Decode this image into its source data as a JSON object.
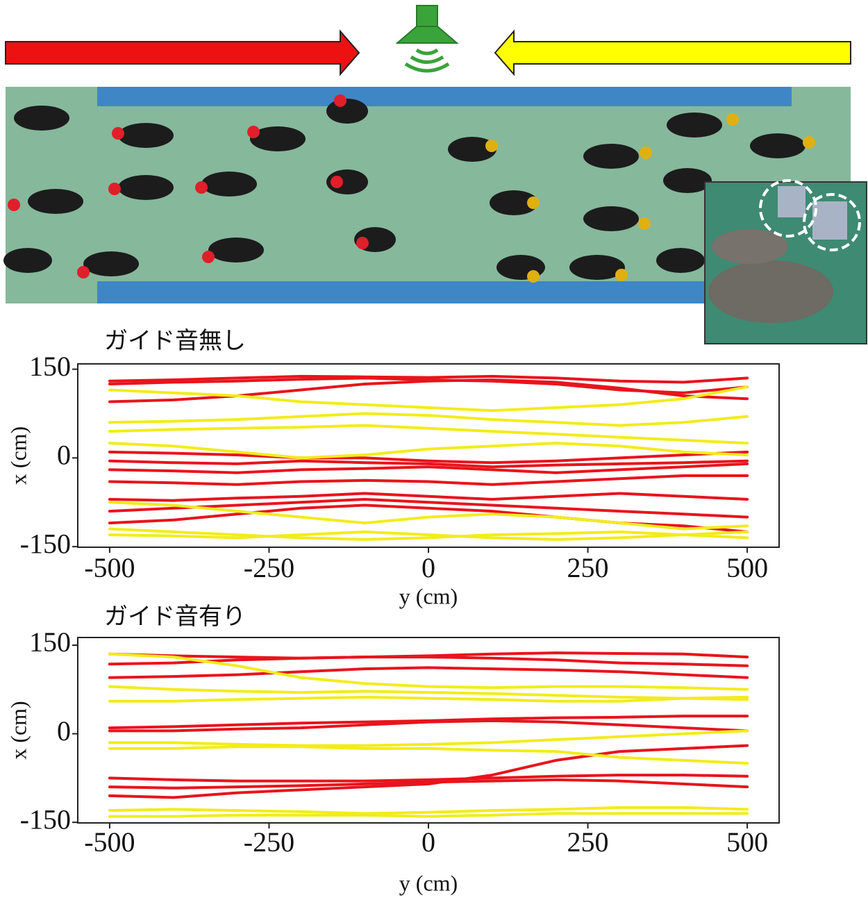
{
  "chart_data": [
    {
      "type": "line",
      "title": "ガイド音無し",
      "x_label": "y (cm)",
      "y_label": "x (cm)",
      "x": [
        -500,
        -400,
        -300,
        -200,
        -100,
        0,
        100,
        200,
        300,
        400,
        500
      ],
      "xlim": [
        -550,
        550
      ],
      "ylim": [
        -151,
        159
      ],
      "xticks": [
        -500,
        -250,
        0,
        250,
        500
      ],
      "yticks": [
        -150,
        0,
        150
      ],
      "series": [
        {
          "color": "#e8141c",
          "values": [
            130,
            132,
            135,
            138,
            137,
            136,
            138,
            135,
            130,
            128,
            135
          ]
        },
        {
          "color": "#e8141c",
          "values": [
            125,
            128,
            130,
            133,
            135,
            132,
            130,
            125,
            115,
            110,
            120
          ]
        },
        {
          "color": "#e8141c",
          "values": [
            95,
            98,
            105,
            115,
            125,
            130,
            132,
            128,
            118,
            105,
            100
          ]
        },
        {
          "color": "#e8141c",
          "values": [
            10,
            8,
            5,
            0,
            0,
            -5,
            -8,
            -5,
            0,
            5,
            10
          ]
        },
        {
          "color": "#e8141c",
          "values": [
            -5,
            -8,
            -10,
            -5,
            -8,
            -10,
            -15,
            -12,
            -10,
            -8,
            -5
          ]
        },
        {
          "color": "#e8141c",
          "values": [
            -20,
            -22,
            -25,
            -20,
            -18,
            -15,
            -20,
            -25,
            -20,
            -15,
            -10
          ]
        },
        {
          "color": "#e8141c",
          "values": [
            -40,
            -42,
            -45,
            -40,
            -38,
            -40,
            -45,
            -40,
            -35,
            -30,
            -30
          ]
        },
        {
          "color": "#e8141c",
          "values": [
            -70,
            -72,
            -68,
            -65,
            -60,
            -65,
            -70,
            -65,
            -60,
            -65,
            -70
          ]
        },
        {
          "color": "#e8141c",
          "values": [
            -90,
            -85,
            -80,
            -75,
            -70,
            -75,
            -80,
            -85,
            -90,
            -95,
            -100
          ]
        },
        {
          "color": "#e8141c",
          "values": [
            -110,
            -105,
            -95,
            -85,
            -80,
            -85,
            -90,
            -100,
            -110,
            -115,
            -125
          ]
        },
        {
          "color": "#f2ec1a",
          "values": [
            115,
            110,
            105,
            95,
            90,
            85,
            80,
            85,
            90,
            100,
            120
          ]
        },
        {
          "color": "#f2ec1a",
          "values": [
            60,
            62,
            65,
            70,
            75,
            72,
            65,
            60,
            55,
            60,
            70
          ]
        },
        {
          "color": "#f2ec1a",
          "values": [
            45,
            48,
            50,
            52,
            55,
            50,
            45,
            40,
            35,
            30,
            25
          ]
        },
        {
          "color": "#f2ec1a",
          "values": [
            25,
            20,
            10,
            0,
            5,
            15,
            20,
            25,
            20,
            10,
            5
          ]
        },
        {
          "color": "#f2ec1a",
          "values": [
            -75,
            -80,
            -90,
            -100,
            -110,
            -100,
            -95,
            -100,
            -110,
            -120,
            -115
          ]
        },
        {
          "color": "#f2ec1a",
          "values": [
            -120,
            -125,
            -130,
            -135,
            -138,
            -135,
            -130,
            -128,
            -125,
            -130,
            -135
          ]
        },
        {
          "color": "#f2ec1a",
          "values": [
            -130,
            -132,
            -135,
            -130,
            -125,
            -130,
            -135,
            -138,
            -135,
            -130,
            -125
          ]
        }
      ]
    },
    {
      "type": "line",
      "title": "ガイド音有り",
      "x_label": "y (cm)",
      "y_label": "x (cm)",
      "x": [
        -500,
        -400,
        -300,
        -200,
        -100,
        0,
        100,
        200,
        300,
        400,
        500
      ],
      "xlim": [
        -550,
        550
      ],
      "ylim": [
        -151,
        163
      ],
      "xticks": [
        -500,
        -250,
        0,
        250,
        500
      ],
      "yticks": [
        -150,
        0,
        150
      ],
      "series": [
        {
          "color": "#e8141c",
          "values": [
            135,
            132,
            130,
            128,
            130,
            132,
            135,
            137,
            136,
            135,
            130
          ]
        },
        {
          "color": "#e8141c",
          "values": [
            118,
            120,
            125,
            128,
            130,
            130,
            128,
            125,
            120,
            118,
            115
          ]
        },
        {
          "color": "#e8141c",
          "values": [
            95,
            97,
            100,
            105,
            110,
            112,
            110,
            108,
            105,
            100,
            95
          ]
        },
        {
          "color": "#e8141c",
          "values": [
            10,
            12,
            15,
            18,
            20,
            22,
            25,
            27,
            28,
            30,
            30
          ]
        },
        {
          "color": "#e8141c",
          "values": [
            5,
            5,
            8,
            10,
            15,
            20,
            22,
            20,
            15,
            10,
            5
          ]
        },
        {
          "color": "#e8141c",
          "values": [
            -75,
            -78,
            -80,
            -80,
            -80,
            -78,
            -75,
            -72,
            -70,
            -70,
            -72
          ]
        },
        {
          "color": "#e8141c",
          "values": [
            -90,
            -92,
            -90,
            -88,
            -85,
            -82,
            -80,
            -78,
            -80,
            -85,
            -90
          ]
        },
        {
          "color": "#e8141c",
          "values": [
            -105,
            -108,
            -100,
            -95,
            -90,
            -85,
            -70,
            -45,
            -30,
            -25,
            -20
          ]
        },
        {
          "color": "#f2ec1a",
          "values": [
            135,
            130,
            115,
            95,
            85,
            80,
            78,
            80,
            80,
            78,
            75
          ]
        },
        {
          "color": "#f2ec1a",
          "values": [
            80,
            75,
            72,
            70,
            72,
            70,
            68,
            65,
            62,
            60,
            58
          ]
        },
        {
          "color": "#f2ec1a",
          "values": [
            55,
            55,
            58,
            60,
            62,
            60,
            58,
            55,
            55,
            60,
            62
          ]
        },
        {
          "color": "#f2ec1a",
          "values": [
            -15,
            -15,
            -18,
            -20,
            -20,
            -18,
            -15,
            -10,
            -5,
            0,
            5
          ]
        },
        {
          "color": "#f2ec1a",
          "values": [
            -25,
            -25,
            -22,
            -22,
            -25,
            -25,
            -28,
            -30,
            -40,
            -45,
            -50
          ]
        },
        {
          "color": "#f2ec1a",
          "values": [
            -130,
            -128,
            -130,
            -132,
            -135,
            -133,
            -130,
            -128,
            -125,
            -125,
            -128
          ]
        },
        {
          "color": "#f2ec1a",
          "values": [
            -140,
            -140,
            -138,
            -138,
            -138,
            -140,
            -138,
            -135,
            -135,
            -135,
            -135
          ]
        }
      ]
    }
  ]
}
